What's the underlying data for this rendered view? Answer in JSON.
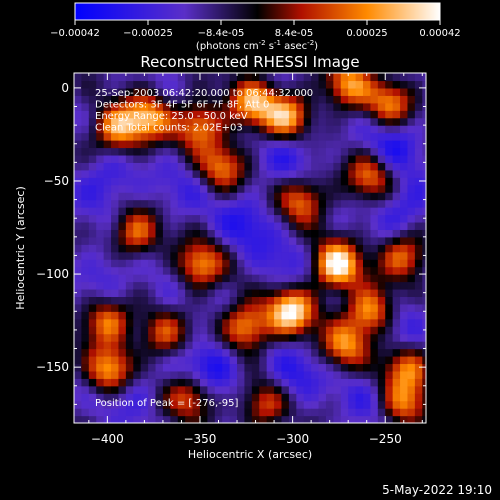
{
  "colorbar": {
    "ticks": [
      "-0.00042",
      "-0.00025",
      "-8.4e-05",
      "8.4e-05",
      "0.00025",
      "0.00042"
    ],
    "unit_label_main": "(photons cm",
    "unit_exp1": "-2",
    "unit_mid1": " s",
    "unit_exp2": "-1",
    "unit_mid2": " asec",
    "unit_exp3": "-2",
    "unit_close": ")",
    "stops": [
      {
        "at": 0.0,
        "color": "#0000ff"
      },
      {
        "at": 0.3,
        "color": "#5a2fc8"
      },
      {
        "at": 0.5,
        "color": "#000000"
      },
      {
        "at": 0.62,
        "color": "#b01000"
      },
      {
        "at": 0.8,
        "color": "#ff8a00"
      },
      {
        "at": 1.0,
        "color": "#ffffff"
      }
    ]
  },
  "chart_data": {
    "type": "heatmap",
    "title": "Reconstructed RHESSI Image",
    "xlabel": "Heliocentric X (arcsec)",
    "ylabel": "Heliocentric Y (arcsec)",
    "xlim": [
      -418,
      -228
    ],
    "ylim": [
      -180,
      8
    ],
    "xticks": [
      -400,
      -350,
      -300,
      -250
    ],
    "yticks": [
      0,
      -50,
      -100,
      -150
    ],
    "xtick_labels": [
      "−400",
      "−350",
      "−300",
      "−250"
    ],
    "ytick_labels": [
      "0",
      "−50",
      "−100",
      "−150"
    ],
    "value_range": [
      -0.00042,
      0.00042
    ],
    "annotations": [
      "25-Sep-2003 06:42:20.000 to 06:44:32.000",
      "Detectors: 3F 4F 5F 6F 7F 8F, Att 0",
      "Energy Range: 25.0 - 50.0 keV",
      "Clean     Total counts: 2.02E+03"
    ],
    "peak_label": "Position of Peak = [-276,-95]",
    "peak": [
      -276,
      -95
    ],
    "bright_sources": [
      {
        "x": -395,
        "y": -22,
        "v": 0.00028
      },
      {
        "x": -378,
        "y": -16,
        "v": 0.00026
      },
      {
        "x": -350,
        "y": -20,
        "v": 0.00025
      },
      {
        "x": -322,
        "y": -8,
        "v": 0.00027
      },
      {
        "x": -303,
        "y": -15,
        "v": 0.0003
      },
      {
        "x": -270,
        "y": 2,
        "v": 0.00024
      },
      {
        "x": -247,
        "y": -8,
        "v": 0.00022
      },
      {
        "x": -338,
        "y": -42,
        "v": 0.0002
      },
      {
        "x": -295,
        "y": -60,
        "v": 0.00022
      },
      {
        "x": -258,
        "y": -47,
        "v": 0.0002
      },
      {
        "x": -385,
        "y": -78,
        "v": 0.00022
      },
      {
        "x": -350,
        "y": -95,
        "v": 0.00026
      },
      {
        "x": -276,
        "y": -95,
        "v": 0.00042
      },
      {
        "x": -240,
        "y": -90,
        "v": 0.00024
      },
      {
        "x": -400,
        "y": -125,
        "v": 0.00025
      },
      {
        "x": -370,
        "y": -132,
        "v": 0.00018
      },
      {
        "x": -325,
        "y": -128,
        "v": 0.00028
      },
      {
        "x": -301,
        "y": -120,
        "v": 0.0004
      },
      {
        "x": -272,
        "y": -138,
        "v": 0.00022
      },
      {
        "x": -258,
        "y": -120,
        "v": 0.0003
      },
      {
        "x": -238,
        "y": -150,
        "v": 0.00022
      },
      {
        "x": -398,
        "y": -152,
        "v": 0.00034
      },
      {
        "x": -355,
        "y": -165,
        "v": 0.0002
      },
      {
        "x": -315,
        "y": -170,
        "v": 0.00018
      },
      {
        "x": -240,
        "y": -170,
        "v": 0.0002
      }
    ],
    "dark_regions": [
      {
        "x": -400,
        "y": -50,
        "v": -0.0003
      },
      {
        "x": -360,
        "y": -55,
        "v": -0.00022
      },
      {
        "x": -300,
        "y": -35,
        "v": -0.00028
      },
      {
        "x": -245,
        "y": -30,
        "v": -0.00032
      },
      {
        "x": -325,
        "y": -72,
        "v": -0.0003
      },
      {
        "x": -240,
        "y": -65,
        "v": -0.0003
      },
      {
        "x": -400,
        "y": -100,
        "v": -0.00026
      },
      {
        "x": -368,
        "y": -112,
        "v": -0.0002
      },
      {
        "x": -305,
        "y": -95,
        "v": -0.00024
      },
      {
        "x": -390,
        "y": -160,
        "v": -0.0003
      },
      {
        "x": -345,
        "y": -150,
        "v": -0.00036
      },
      {
        "x": -300,
        "y": -155,
        "v": -0.0003
      },
      {
        "x": -262,
        "y": -168,
        "v": -0.00022
      },
      {
        "x": -240,
        "y": -125,
        "v": -0.00026
      }
    ]
  },
  "footer": {
    "timestamp": "5-May-2022 19:10"
  }
}
